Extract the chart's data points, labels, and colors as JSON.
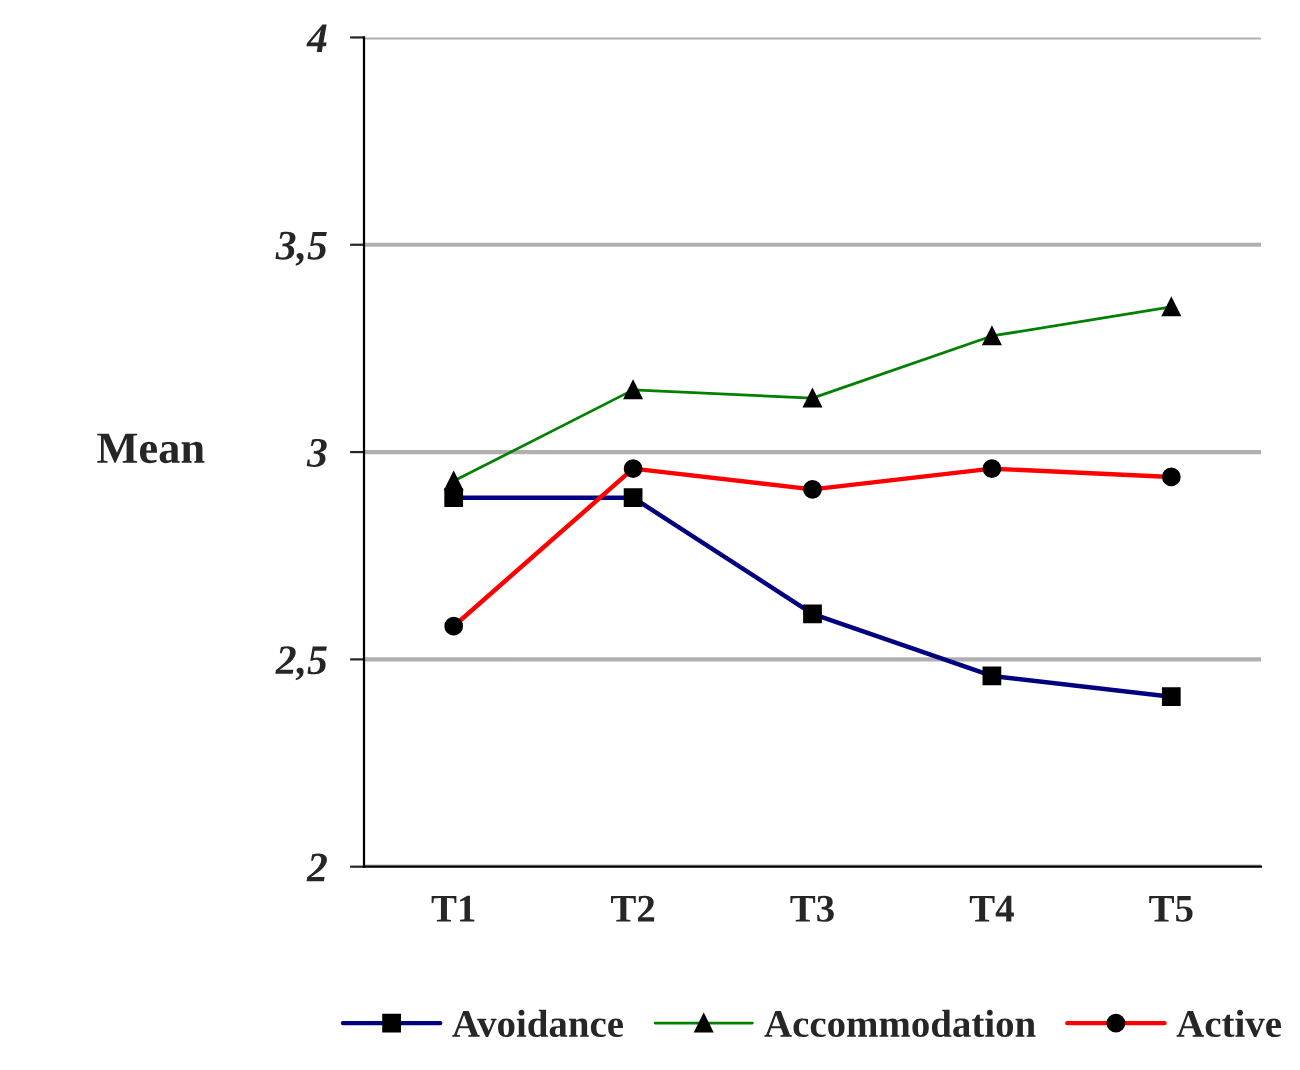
{
  "chart_data": {
    "type": "line",
    "ylabel": "Mean",
    "categories": [
      "T1",
      "T2",
      "T3",
      "T4",
      "T5"
    ],
    "series": [
      {
        "name": "Avoidance",
        "color": "#000080",
        "marker": "square",
        "values": [
          2.89,
          2.89,
          2.61,
          2.46,
          2.41
        ]
      },
      {
        "name": "Accommodation",
        "color": "#008000",
        "marker": "triangle",
        "values": [
          2.93,
          3.15,
          3.13,
          3.28,
          3.35
        ]
      },
      {
        "name": "Active",
        "color": "#ff0000",
        "marker": "circle",
        "values": [
          2.58,
          2.96,
          2.91,
          2.96,
          2.94
        ]
      }
    ],
    "ylim": [
      2,
      4
    ],
    "yticks": [
      {
        "value": 2,
        "label": "2"
      },
      {
        "value": 2.5,
        "label": "2,5"
      },
      {
        "value": 3,
        "label": "3"
      },
      {
        "value": 3.5,
        "label": "3,5"
      },
      {
        "value": 4,
        "label": "4"
      }
    ],
    "grid": "y",
    "legend": "bottom",
    "line_style": "solid"
  }
}
